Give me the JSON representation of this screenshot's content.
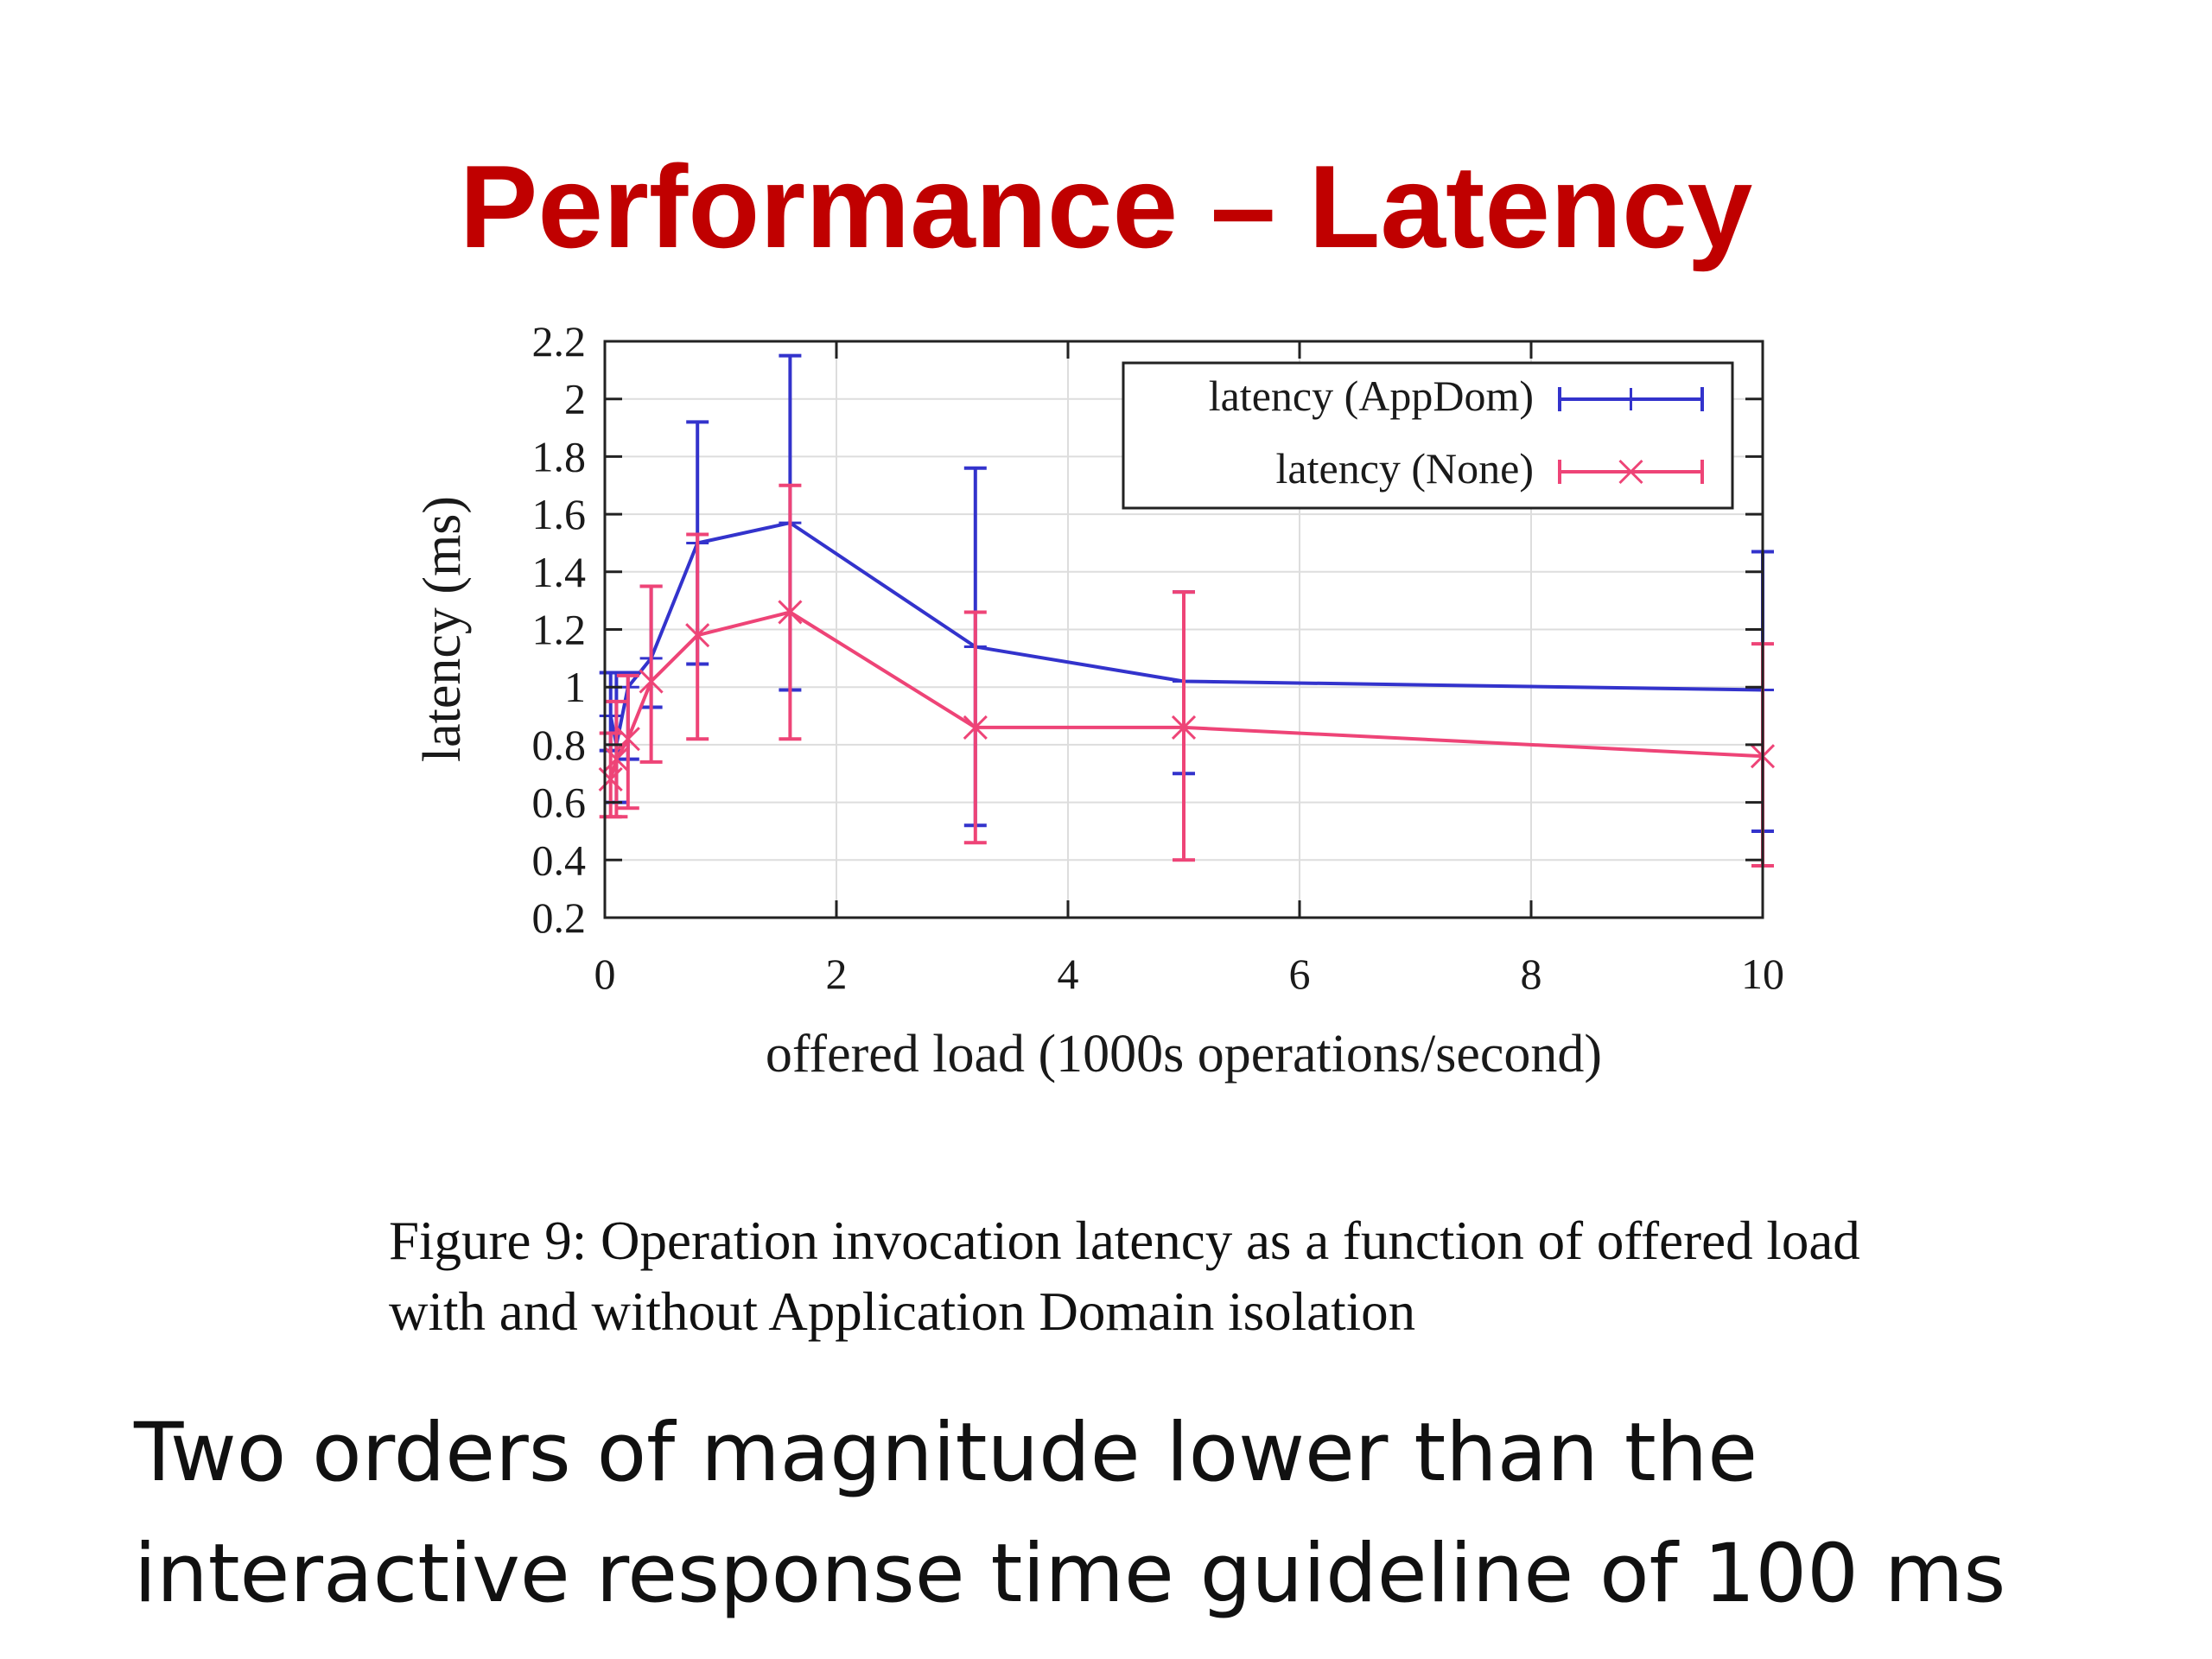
{
  "slide": {
    "title": "Performance – Latency",
    "caption": "Figure 9:  Operation invocation latency as a function of offered load with and without Application Domain isolation",
    "note": "Two orders of magnitude lower than the interactive response time guideline of 100 ms"
  },
  "chart_data": {
    "type": "line",
    "title": "",
    "xlabel": "offered load (1000s operations/second)",
    "ylabel": "latency (ms)",
    "xlim": [
      0,
      10
    ],
    "ylim": [
      0.2,
      2.2
    ],
    "x_ticks": [
      "0",
      "2",
      "4",
      "6",
      "8",
      "10"
    ],
    "y_ticks": [
      "0.2",
      "0.4",
      "0.6",
      "0.8",
      "1",
      "1.2",
      "1.4",
      "1.6",
      "1.8",
      "2",
      "2.2"
    ],
    "grid": true,
    "legend_position": "top-right",
    "error_bars": true,
    "series": [
      {
        "name": "latency (AppDom)",
        "marker": "plus",
        "color": "#3333cc",
        "x": [
          0.05,
          0.1,
          0.2,
          0.4,
          0.8,
          1.6,
          3.2,
          5.0,
          10.0
        ],
        "y": [
          0.9,
          0.8,
          1.0,
          1.1,
          1.5,
          1.57,
          1.14,
          1.02,
          0.99
        ],
        "y_low": [
          0.78,
          0.6,
          0.75,
          0.93,
          1.08,
          0.99,
          0.52,
          0.7,
          0.5
        ],
        "y_high": [
          1.05,
          1.05,
          1.05,
          1.35,
          1.92,
          2.15,
          1.76,
          1.33,
          1.47
        ]
      },
      {
        "name": "latency (None)",
        "marker": "cross",
        "color": "#ee4477",
        "x": [
          0.05,
          0.1,
          0.2,
          0.4,
          0.8,
          1.6,
          3.2,
          5.0,
          10.0
        ],
        "y": [
          0.68,
          0.75,
          0.82,
          1.02,
          1.18,
          1.26,
          0.86,
          0.86,
          0.76
        ],
        "y_low": [
          0.55,
          0.55,
          0.58,
          0.74,
          0.82,
          0.82,
          0.46,
          0.4,
          0.38
        ],
        "y_high": [
          0.84,
          0.95,
          1.04,
          1.35,
          1.53,
          1.7,
          1.26,
          1.33,
          1.15
        ]
      }
    ]
  }
}
